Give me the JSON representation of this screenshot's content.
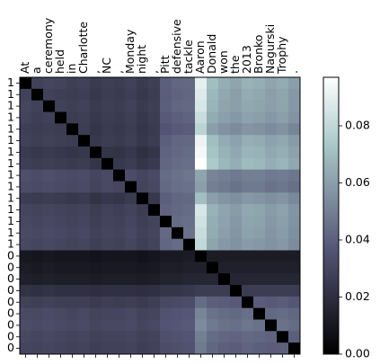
{
  "chart_data": {
    "type": "heatmap",
    "x_labels": [
      "At",
      "a",
      "ceremony",
      "held",
      "in",
      "Charlotte",
      ",",
      "NC",
      ",",
      "Monday",
      "night",
      ",",
      "Pitt",
      "defensive",
      "tackle",
      "Aaron",
      "Donald",
      "won",
      "the",
      "2013",
      "Bronko",
      "Nagurski",
      "Trophy",
      "."
    ],
    "y_labels": [
      "1",
      "1",
      "1",
      "1",
      "1",
      "1",
      "1",
      "1",
      "1",
      "1",
      "1",
      "1",
      "1",
      "1",
      "1",
      "0",
      "0",
      "0",
      "0",
      "0",
      "0",
      "0",
      "0",
      "0"
    ],
    "colorbar": {
      "min": 0.0,
      "max": 0.097,
      "ticks": [
        0.0,
        0.02,
        0.04,
        0.06,
        0.08
      ],
      "tick_labels": [
        "0.00",
        "0.02",
        "0.04",
        "0.06",
        "0.08"
      ],
      "colormap": "bone"
    },
    "diagonal_value": 0.0,
    "matrix": [
      [
        0.0,
        0.028,
        0.03,
        0.029,
        0.027,
        0.028,
        0.025,
        0.027,
        0.026,
        0.028,
        0.025,
        0.027,
        0.04,
        0.042,
        0.043,
        0.09,
        0.07,
        0.065,
        0.062,
        0.066,
        0.065,
        0.062,
        0.064,
        0.06
      ],
      [
        0.028,
        0.0,
        0.028,
        0.027,
        0.026,
        0.027,
        0.024,
        0.026,
        0.025,
        0.027,
        0.024,
        0.026,
        0.039,
        0.041,
        0.042,
        0.088,
        0.068,
        0.063,
        0.06,
        0.064,
        0.063,
        0.06,
        0.062,
        0.058
      ],
      [
        0.03,
        0.028,
        0.0,
        0.028,
        0.027,
        0.028,
        0.025,
        0.027,
        0.026,
        0.028,
        0.025,
        0.027,
        0.04,
        0.042,
        0.043,
        0.086,
        0.067,
        0.062,
        0.06,
        0.063,
        0.062,
        0.06,
        0.062,
        0.058
      ],
      [
        0.029,
        0.027,
        0.028,
        0.0,
        0.026,
        0.027,
        0.024,
        0.026,
        0.025,
        0.027,
        0.024,
        0.026,
        0.038,
        0.04,
        0.041,
        0.082,
        0.064,
        0.06,
        0.058,
        0.061,
        0.06,
        0.058,
        0.06,
        0.056
      ],
      [
        0.027,
        0.026,
        0.027,
        0.026,
        0.0,
        0.026,
        0.023,
        0.025,
        0.024,
        0.026,
        0.023,
        0.025,
        0.036,
        0.038,
        0.039,
        0.078,
        0.06,
        0.056,
        0.054,
        0.057,
        0.056,
        0.054,
        0.056,
        0.052
      ],
      [
        0.028,
        0.027,
        0.028,
        0.027,
        0.026,
        0.0,
        0.024,
        0.026,
        0.025,
        0.027,
        0.024,
        0.026,
        0.04,
        0.042,
        0.043,
        0.092,
        0.07,
        0.064,
        0.061,
        0.065,
        0.064,
        0.061,
        0.063,
        0.059
      ],
      [
        0.025,
        0.024,
        0.025,
        0.024,
        0.023,
        0.024,
        0.0,
        0.023,
        0.022,
        0.024,
        0.021,
        0.023,
        0.041,
        0.043,
        0.044,
        0.094,
        0.072,
        0.066,
        0.063,
        0.067,
        0.066,
        0.063,
        0.065,
        0.061
      ],
      [
        0.027,
        0.026,
        0.027,
        0.026,
        0.025,
        0.026,
        0.023,
        0.0,
        0.024,
        0.026,
        0.023,
        0.025,
        0.042,
        0.044,
        0.045,
        0.097,
        0.074,
        0.068,
        0.065,
        0.069,
        0.068,
        0.065,
        0.067,
        0.063
      ],
      [
        0.034,
        0.033,
        0.034,
        0.033,
        0.032,
        0.033,
        0.03,
        0.032,
        0.0,
        0.033,
        0.03,
        0.032,
        0.044,
        0.046,
        0.047,
        0.062,
        0.052,
        0.05,
        0.048,
        0.05,
        0.05,
        0.048,
        0.049,
        0.047
      ],
      [
        0.033,
        0.032,
        0.033,
        0.032,
        0.031,
        0.032,
        0.029,
        0.031,
        0.03,
        0.0,
        0.029,
        0.031,
        0.043,
        0.045,
        0.046,
        0.06,
        0.05,
        0.048,
        0.046,
        0.048,
        0.048,
        0.046,
        0.047,
        0.045
      ],
      [
        0.026,
        0.025,
        0.026,
        0.025,
        0.024,
        0.025,
        0.022,
        0.024,
        0.023,
        0.025,
        0.0,
        0.024,
        0.04,
        0.042,
        0.043,
        0.07,
        0.06,
        0.057,
        0.055,
        0.058,
        0.057,
        0.055,
        0.057,
        0.053
      ],
      [
        0.03,
        0.029,
        0.03,
        0.029,
        0.028,
        0.029,
        0.026,
        0.028,
        0.027,
        0.029,
        0.026,
        0.0,
        0.041,
        0.043,
        0.044,
        0.086,
        0.066,
        0.062,
        0.059,
        0.063,
        0.062,
        0.059,
        0.061,
        0.057
      ],
      [
        0.031,
        0.03,
        0.031,
        0.03,
        0.029,
        0.03,
        0.027,
        0.029,
        0.028,
        0.03,
        0.027,
        0.029,
        0.0,
        0.044,
        0.045,
        0.084,
        0.065,
        0.061,
        0.058,
        0.062,
        0.061,
        0.058,
        0.06,
        0.056
      ],
      [
        0.032,
        0.031,
        0.032,
        0.031,
        0.03,
        0.031,
        0.028,
        0.03,
        0.029,
        0.031,
        0.028,
        0.03,
        0.043,
        0.0,
        0.046,
        0.082,
        0.064,
        0.06,
        0.057,
        0.061,
        0.06,
        0.057,
        0.059,
        0.055
      ],
      [
        0.031,
        0.03,
        0.031,
        0.03,
        0.029,
        0.03,
        0.027,
        0.029,
        0.028,
        0.03,
        0.027,
        0.029,
        0.042,
        0.044,
        0.0,
        0.08,
        0.062,
        0.058,
        0.056,
        0.059,
        0.058,
        0.056,
        0.058,
        0.054
      ],
      [
        0.01,
        0.009,
        0.01,
        0.009,
        0.009,
        0.009,
        0.008,
        0.009,
        0.009,
        0.009,
        0.008,
        0.009,
        0.011,
        0.011,
        0.012,
        0.0,
        0.012,
        0.012,
        0.012,
        0.012,
        0.012,
        0.012,
        0.012,
        0.012
      ],
      [
        0.012,
        0.011,
        0.012,
        0.011,
        0.011,
        0.011,
        0.01,
        0.011,
        0.011,
        0.011,
        0.01,
        0.011,
        0.013,
        0.013,
        0.014,
        0.014,
        0.0,
        0.014,
        0.014,
        0.014,
        0.014,
        0.014,
        0.014,
        0.014
      ],
      [
        0.014,
        0.013,
        0.014,
        0.013,
        0.013,
        0.013,
        0.012,
        0.013,
        0.013,
        0.013,
        0.012,
        0.013,
        0.015,
        0.015,
        0.016,
        0.016,
        0.016,
        0.0,
        0.016,
        0.016,
        0.016,
        0.016,
        0.016,
        0.016
      ],
      [
        0.022,
        0.021,
        0.022,
        0.021,
        0.021,
        0.021,
        0.02,
        0.021,
        0.021,
        0.021,
        0.02,
        0.021,
        0.023,
        0.023,
        0.024,
        0.026,
        0.026,
        0.026,
        0.0,
        0.026,
        0.026,
        0.026,
        0.026,
        0.026
      ],
      [
        0.028,
        0.027,
        0.028,
        0.027,
        0.027,
        0.027,
        0.025,
        0.027,
        0.026,
        0.027,
        0.025,
        0.027,
        0.031,
        0.032,
        0.033,
        0.044,
        0.04,
        0.039,
        0.038,
        0.0,
        0.039,
        0.038,
        0.039,
        0.037
      ],
      [
        0.032,
        0.031,
        0.032,
        0.031,
        0.03,
        0.031,
        0.029,
        0.03,
        0.03,
        0.031,
        0.029,
        0.03,
        0.035,
        0.036,
        0.037,
        0.052,
        0.046,
        0.044,
        0.043,
        0.045,
        0.0,
        0.043,
        0.044,
        0.042
      ],
      [
        0.033,
        0.032,
        0.033,
        0.032,
        0.031,
        0.032,
        0.03,
        0.031,
        0.031,
        0.032,
        0.03,
        0.031,
        0.036,
        0.037,
        0.038,
        0.054,
        0.048,
        0.046,
        0.045,
        0.047,
        0.046,
        0.0,
        0.046,
        0.044
      ],
      [
        0.031,
        0.03,
        0.031,
        0.03,
        0.029,
        0.03,
        0.028,
        0.029,
        0.029,
        0.03,
        0.028,
        0.029,
        0.034,
        0.035,
        0.036,
        0.05,
        0.044,
        0.042,
        0.041,
        0.043,
        0.042,
        0.041,
        0.0,
        0.04
      ],
      [
        0.03,
        0.029,
        0.03,
        0.029,
        0.028,
        0.029,
        0.027,
        0.028,
        0.028,
        0.029,
        0.027,
        0.028,
        0.033,
        0.034,
        0.035,
        0.048,
        0.042,
        0.04,
        0.039,
        0.041,
        0.04,
        0.039,
        0.04,
        0.0
      ]
    ]
  }
}
